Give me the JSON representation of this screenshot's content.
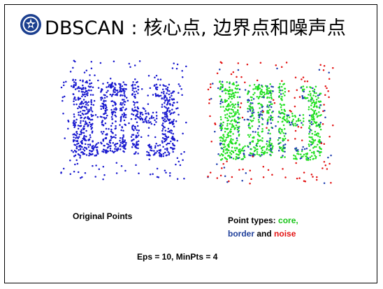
{
  "slide": {
    "title": "DBSCAN : 核心点, 边界点和噪声点",
    "left_caption": "Original Points",
    "right_caption": {
      "prefix": "Point types: ",
      "core": "core",
      "comma": ",",
      "border": "border",
      "and": " and ",
      "noise": "noise"
    },
    "params": "Eps = 10, MinPts = 4"
  },
  "colors": {
    "original": "#1a1acf",
    "core": "#22e022",
    "border": "#1f3fb0",
    "noise": "#e31212"
  },
  "icons": {
    "logo": "university-seal-icon"
  }
}
